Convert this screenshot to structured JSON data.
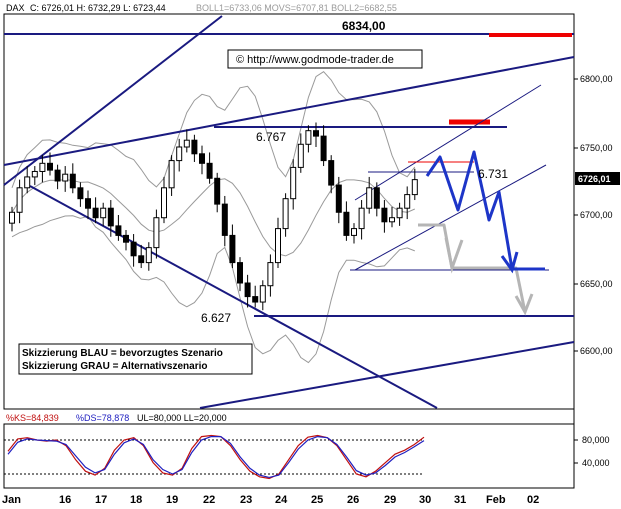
{
  "header": {
    "instrument": "DAX",
    "ohlc": "C: 6726,01  H: 6732,29  L: 6723,44",
    "indicators": "BOLL1=6733,06  MOVS=6707,81  BOLL2=6682,55"
  },
  "watermark": "© http://www.godmode-trader.de",
  "legend": {
    "line1": "Skizzierung BLAU = bevorzugtes Szenario",
    "line2": "Skizzierung GRAU = Alternativszenario"
  },
  "oscillator_header": {
    "ks": "%KS=84,839",
    "ds": "%DS=78,878",
    "levels": "UL=80,000  LL=20,000"
  },
  "colors": {
    "candle_up": "#ffffff",
    "candle_down": "#000000",
    "trend_line": "#1a1a80",
    "scenario_blue": "#1d35c8",
    "scenario_gray": "#b5b5b5",
    "resistance_red": "#ee0000",
    "bollinger": "#9a9a9a",
    "ks_line": "#c01010",
    "ds_line": "#2020c0"
  },
  "chart_data": [
    {
      "type": "candlestick",
      "title": "DAX",
      "x_ticks": [
        "Jan",
        "16",
        "17",
        "18",
        "19",
        "22",
        "23",
        "24",
        "25",
        "26",
        "29",
        "30",
        "31",
        "Feb",
        "02"
      ],
      "y_ticks": [
        "6800,00",
        "6750,00",
        "6700,00",
        "6650,00",
        "6600,00"
      ],
      "ylim": [
        6555,
        6840
      ],
      "current_price": "6726,01",
      "levels": [
        {
          "label": "6834,00",
          "value": 6834
        },
        {
          "label": "6.767",
          "value": 6767
        },
        {
          "label": "6.731",
          "value": 6731
        },
        {
          "label": "6.627",
          "value": 6627
        }
      ],
      "close_series": [
        6702,
        6720,
        6728,
        6732,
        6738,
        6733,
        6725,
        6730,
        6720,
        6712,
        6705,
        6698,
        6705,
        6692,
        6685,
        6680,
        6670,
        6665,
        6676,
        6698,
        6720,
        6740,
        6750,
        6755,
        6745,
        6738,
        6727,
        6708,
        6685,
        6665,
        6650,
        6640,
        6636,
        6648,
        6665,
        6690,
        6712,
        6735,
        6752,
        6762,
        6758,
        6740,
        6722,
        6702,
        6685,
        6690,
        6705,
        6720,
        6705,
        6695,
        6698,
        6705,
        6715,
        6726
      ],
      "blue_scenario": [
        6731,
        6745,
        6705,
        6745,
        6695,
        6715,
        6660
      ],
      "gray_scenario": [
        6690,
        6660,
        6660,
        6650,
        6627
      ]
    },
    {
      "type": "line",
      "title": "Slow Stochastic",
      "y_ticks": [
        "80,000",
        "40,000"
      ],
      "ylim": [
        0,
        100
      ],
      "series": [
        {
          "name": "%KS",
          "values": [
            60,
            82,
            84,
            80,
            78,
            80,
            70,
            45,
            25,
            18,
            30,
            62,
            80,
            84,
            70,
            40,
            22,
            18,
            30,
            65,
            86,
            88,
            86,
            70,
            45,
            25,
            15,
            12,
            20,
            45,
            70,
            85,
            88,
            84,
            70,
            45,
            20,
            15,
            25,
            40,
            55,
            62,
            72,
            85
          ]
        },
        {
          "name": "%DS",
          "values": [
            55,
            76,
            82,
            80,
            79,
            78,
            72,
            52,
            32,
            22,
            28,
            55,
            75,
            82,
            72,
            45,
            28,
            20,
            28,
            58,
            80,
            86,
            86,
            74,
            50,
            30,
            18,
            14,
            18,
            40,
            64,
            80,
            86,
            84,
            72,
            50,
            26,
            18,
            22,
            35,
            50,
            58,
            68,
            79
          ]
        }
      ]
    }
  ]
}
